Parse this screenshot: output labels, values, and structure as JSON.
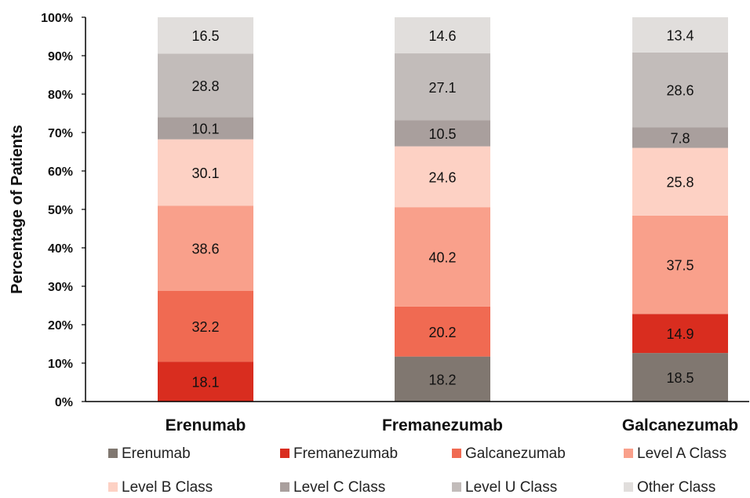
{
  "chart_data": {
    "type": "bar",
    "stacked": true,
    "normalized": true,
    "categories": [
      "Erenumab",
      "Fremanezumab",
      "Galcanezumab"
    ],
    "ylabel": "Percentage of Patients",
    "ylim": [
      0,
      100
    ],
    "yticks": [
      "0%",
      "10%",
      "20%",
      "30%",
      "40%",
      "50%",
      "60%",
      "70%",
      "80%",
      "90%",
      "100%"
    ],
    "grid": false,
    "legend_position": "bottom",
    "series": [
      {
        "name": "Erenumab",
        "color": "#807770",
        "values": [
          null,
          18.2,
          18.5
        ]
      },
      {
        "name": "Fremanezumab",
        "color": "#d92d1f",
        "values": [
          18.1,
          null,
          14.9
        ]
      },
      {
        "name": "Galcanezumab",
        "color": "#f06a52",
        "values": [
          32.2,
          20.2,
          null
        ]
      },
      {
        "name": "Level A Class",
        "color": "#f9a08b",
        "values": [
          38.6,
          40.2,
          37.5
        ]
      },
      {
        "name": "Level B Class",
        "color": "#fdd1c4",
        "values": [
          30.1,
          24.6,
          25.8
        ]
      },
      {
        "name": "Level C Class",
        "color": "#a99f9d",
        "values": [
          10.1,
          10.5,
          7.8
        ]
      },
      {
        "name": "Level U Class",
        "color": "#c2bcba",
        "values": [
          28.8,
          27.1,
          28.6
        ]
      },
      {
        "name": "Other Class",
        "color": "#e1dedc",
        "values": [
          16.5,
          14.6,
          13.4
        ]
      }
    ]
  }
}
